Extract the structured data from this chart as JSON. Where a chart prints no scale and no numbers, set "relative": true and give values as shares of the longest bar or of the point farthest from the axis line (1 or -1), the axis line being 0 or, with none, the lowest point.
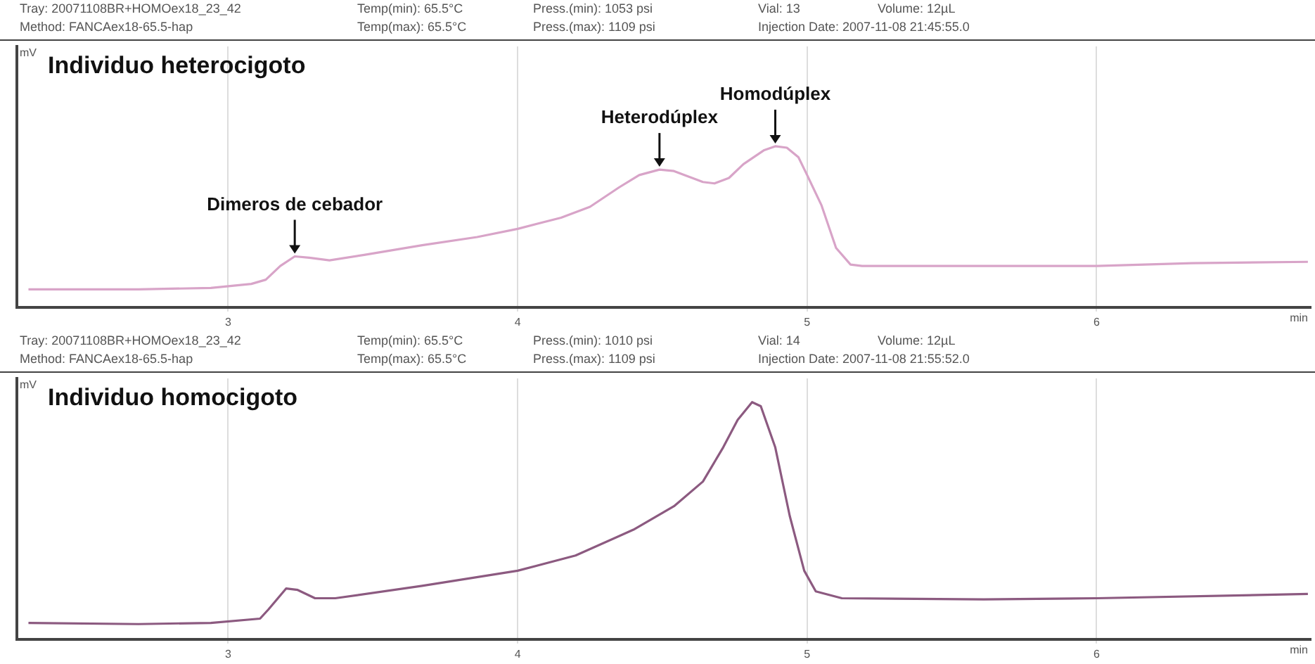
{
  "chart_data": [
    {
      "type": "line",
      "relative": true,
      "title": "Individuo heterocigoto",
      "xlabel": "min",
      "ylabel": "mV",
      "xlim": [
        2.27,
        6.74
      ],
      "xticks": [
        3,
        4,
        5,
        6
      ],
      "tick_labels": "x",
      "grid": "x",
      "legend": false,
      "marker": "none",
      "line_style": "solid",
      "annotations": [
        "Tray: 20071108BR+HOMOex18_23_42",
        "Method: FANCAex18-65.5-hap",
        "Temp(min): 65.5°C",
        "Temp(max): 65.5°C",
        "Press.(min): 1053 psi",
        "Press.(max): 1109 psi",
        "Vial: 13",
        "Injection Date: 2007-11-08 21:45:55.0",
        "Volume: 12µL",
        {
          "text": "Dimeros de cebador",
          "x": 3.23,
          "y": 0.316
        },
        {
          "text": "Heterodúplex",
          "x": 4.49,
          "y": 0.855
        },
        {
          "text": "Homodúplex",
          "x": 4.89,
          "y": 1
        }
      ],
      "series": [
        {
          "color": "#d8a4c8",
          "x": [
            2.31,
            2.69,
            2.94,
            3.08,
            3.13,
            3.18,
            3.23,
            3.28,
            3.35,
            3.47,
            3.67,
            3.86,
            4.0,
            4.15,
            4.25,
            4.35,
            4.42,
            4.49,
            4.54,
            4.59,
            4.64,
            4.68,
            4.73,
            4.78,
            4.85,
            4.89,
            4.93,
            4.97,
            5.0,
            5.05,
            5.1,
            5.15,
            5.19,
            5.61,
            6.0,
            6.33,
            6.73
          ],
          "values": [
            0.111,
            0.111,
            0.12,
            0.145,
            0.171,
            0.256,
            0.316,
            0.308,
            0.291,
            0.325,
            0.385,
            0.436,
            0.487,
            0.556,
            0.624,
            0.744,
            0.821,
            0.855,
            0.846,
            0.812,
            0.778,
            0.769,
            0.803,
            0.889,
            0.974,
            1,
            0.991,
            0.932,
            0.821,
            0.632,
            0.368,
            0.265,
            0.256,
            0.256,
            0.256,
            0.274,
            0.282
          ]
        }
      ]
    },
    {
      "type": "line",
      "relative": true,
      "title": "Individuo homocigoto",
      "xlabel": "min",
      "ylabel": "mV",
      "xlim": [
        2.27,
        6.74
      ],
      "xticks": [
        3,
        4,
        5,
        6
      ],
      "tick_labels": "x",
      "grid": "x",
      "legend": false,
      "marker": "none",
      "line_style": "solid",
      "annotations": [
        "Tray: 20071108BR+HOMOex18_23_42",
        "Method: FANCAex18-65.5-hap",
        "Temp(min): 65.5°C",
        "Temp(max): 65.5°C",
        "Press.(min): 1010 psi",
        "Press.(max): 1109 psi",
        "Vial: 14",
        "Injection Date: 2007-11-08 21:55:52.0",
        "Volume: 12µL"
      ],
      "series": [
        {
          "color": "#8c5a80",
          "x": [
            2.31,
            2.69,
            2.94,
            3.11,
            3.14,
            3.2,
            3.24,
            3.3,
            3.37,
            3.67,
            4.0,
            4.2,
            4.4,
            4.54,
            4.64,
            4.71,
            4.76,
            4.81,
            4.84,
            4.89,
            4.94,
            4.99,
            5.03,
            5.12,
            5.61,
            6.0,
            6.73
          ],
          "values": [
            0.069,
            0.064,
            0.069,
            0.087,
            0.127,
            0.214,
            0.208,
            0.173,
            0.173,
            0.225,
            0.289,
            0.353,
            0.462,
            0.561,
            0.665,
            0.809,
            0.925,
            1,
            0.983,
            0.809,
            0.52,
            0.289,
            0.202,
            0.173,
            0.168,
            0.173,
            0.191
          ]
        }
      ]
    }
  ]
}
